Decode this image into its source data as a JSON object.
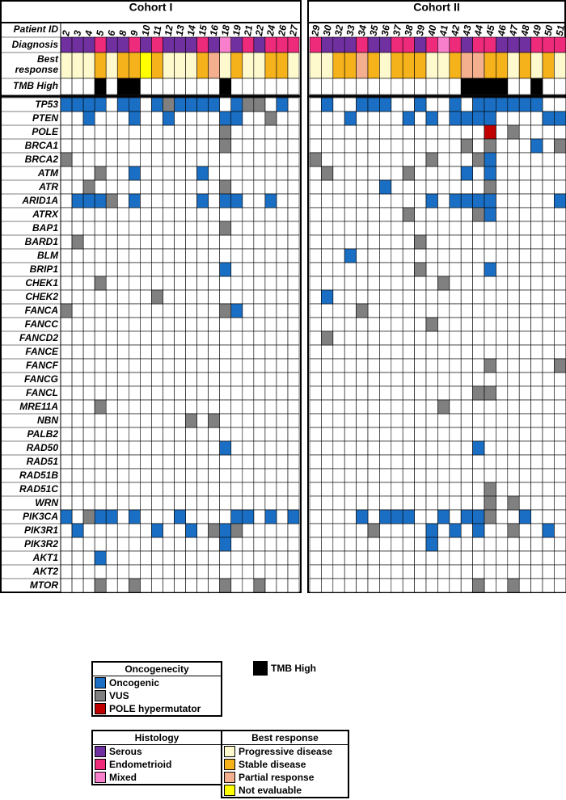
{
  "cohorts": [
    {
      "title": "Cohort I",
      "patients": [
        "2",
        "3",
        "4",
        "5",
        "6",
        "8",
        "9",
        "10",
        "11",
        "12",
        "13",
        "14",
        "15",
        "16",
        "18",
        "19",
        "21",
        "22",
        "24",
        "26",
        "27"
      ],
      "diagnosis": [
        "Serous",
        "Serous",
        "Serous",
        "Endometrioid",
        "Serous",
        "Serous",
        "Endometrioid",
        "Serous",
        "Endometrioid",
        "Serous",
        "Serous",
        "Serous",
        "Endometrioid",
        "Serous",
        "Mixed",
        "Serous",
        "Endometrioid",
        "Serous",
        "Endometrioid",
        "Endometrioid",
        "Endometrioid"
      ],
      "best_response": [
        "Progressive disease",
        "Progressive disease",
        "Progressive disease",
        "Stable disease",
        "Progressive disease",
        "Stable disease",
        "Stable disease",
        "Not evaluable",
        "Stable disease",
        "Progressive disease",
        "Progressive disease",
        "Progressive disease",
        "Stable disease",
        "Partial response",
        "Progressive disease",
        "Stable disease",
        "Progressive disease",
        "Progressive disease",
        "Stable disease",
        "Stable disease",
        "Progressive disease"
      ],
      "tmb_high": [
        "5",
        "8",
        "9",
        "18"
      ]
    },
    {
      "title": "Cohort II",
      "patients": [
        "29",
        "30",
        "32",
        "33",
        "34",
        "35",
        "36",
        "37",
        "38",
        "39",
        "40",
        "41",
        "42",
        "43",
        "44",
        "45",
        "46",
        "47",
        "48",
        "49",
        "50",
        "51"
      ],
      "diagnosis": [
        "Endometrioid",
        "Serous",
        "Serous",
        "Serous",
        "Endometrioid",
        "Serous",
        "Serous",
        "Endometrioid",
        "Endometrioid",
        "Serous",
        "Endometrioid",
        "Mixed",
        "Endometrioid",
        "Serous",
        "Endometrioid",
        "Endometrioid",
        "Serous",
        "Serous",
        "Serous",
        "Endometrioid",
        "Endometrioid",
        "Endometrioid"
      ],
      "best_response": [
        "Progressive disease",
        "Progressive disease",
        "Stable disease",
        "Stable disease",
        "Partial response",
        "Stable disease",
        "Progressive disease",
        "Stable disease",
        "Stable disease",
        "Stable disease",
        "Progressive disease",
        "Progressive disease",
        "Stable disease",
        "Partial response",
        "Partial response",
        "Stable disease",
        "Stable disease",
        "Progressive disease",
        "Stable disease",
        "Progressive disease",
        "Stable disease",
        "Progressive disease"
      ],
      "tmb_high": [
        "43",
        "44",
        "45",
        "46",
        "49"
      ]
    }
  ],
  "row_labels": {
    "patient_id": "Patient ID",
    "diagnosis": "Diagnosis",
    "best_response": "Best response",
    "tmb": "TMB High"
  },
  "genes": [
    {
      "gene": "TP53",
      "alterations": {
        "Oncogenic": [
          "2",
          "3",
          "4",
          "5",
          "8",
          "9",
          "11",
          "13",
          "14",
          "15",
          "16",
          "19",
          "26",
          "30",
          "34",
          "35",
          "36",
          "39",
          "42",
          "44",
          "45",
          "46",
          "47",
          "48",
          "49"
        ],
        "VUS": [
          "12",
          "21",
          "22"
        ]
      }
    },
    {
      "gene": "PTEN",
      "alterations": {
        "Oncogenic": [
          "4",
          "9",
          "12",
          "18",
          "19",
          "33",
          "38",
          "40",
          "42",
          "43",
          "44",
          "45",
          "50",
          "51"
        ],
        "VUS": [
          "24"
        ]
      }
    },
    {
      "gene": "POLE",
      "alterations": {
        "VUS": [
          "18",
          "47"
        ],
        "POLE hypermutator": [
          "45"
        ]
      }
    },
    {
      "gene": "BRCA1",
      "alterations": {
        "Oncogenic": [
          "49"
        ],
        "VUS": [
          "18",
          "43",
          "45",
          "51"
        ]
      }
    },
    {
      "gene": "BRCA2",
      "alterations": {
        "Oncogenic": [
          "45"
        ],
        "VUS": [
          "2",
          "29",
          "40",
          "44"
        ]
      }
    },
    {
      "gene": "ATM",
      "alterations": {
        "Oncogenic": [
          "9",
          "15",
          "43",
          "45"
        ],
        "VUS": [
          "5",
          "30",
          "38"
        ]
      }
    },
    {
      "gene": "ATR",
      "alterations": {
        "Oncogenic": [
          "36"
        ],
        "VUS": [
          "4",
          "18",
          "45"
        ]
      }
    },
    {
      "gene": "ARID1A",
      "alterations": {
        "Oncogenic": [
          "3",
          "4",
          "5",
          "9",
          "15",
          "18",
          "19",
          "24",
          "40",
          "42",
          "43",
          "44",
          "45",
          "51"
        ],
        "VUS": [
          "6"
        ]
      }
    },
    {
      "gene": "ATRX",
      "alterations": {
        "Oncogenic": [
          "45"
        ],
        "VUS": [
          "38",
          "44"
        ]
      }
    },
    {
      "gene": "BAP1",
      "alterations": {
        "VUS": [
          "18"
        ]
      }
    },
    {
      "gene": "BARD1",
      "alterations": {
        "VUS": [
          "3",
          "39"
        ]
      }
    },
    {
      "gene": "BLM",
      "alterations": {
        "Oncogenic": [
          "33"
        ]
      }
    },
    {
      "gene": "BRIP1",
      "alterations": {
        "Oncogenic": [
          "18",
          "45"
        ],
        "VUS": [
          "39"
        ]
      }
    },
    {
      "gene": "CHEK1",
      "alterations": {
        "VUS": [
          "5",
          "41"
        ]
      }
    },
    {
      "gene": "CHEK2",
      "alterations": {
        "Oncogenic": [
          "30"
        ],
        "VUS": [
          "11"
        ]
      }
    },
    {
      "gene": "FANCA",
      "alterations": {
        "Oncogenic": [
          "19"
        ],
        "VUS": [
          "2",
          "18",
          "34"
        ]
      }
    },
    {
      "gene": "FANCC",
      "alterations": {
        "VUS": [
          "40"
        ]
      }
    },
    {
      "gene": "FANCD2",
      "alterations": {
        "VUS": [
          "30"
        ]
      }
    },
    {
      "gene": "FANCE",
      "alterations": {}
    },
    {
      "gene": "FANCF",
      "alterations": {
        "VUS": [
          "45",
          "51"
        ]
      }
    },
    {
      "gene": "FANCG",
      "alterations": {}
    },
    {
      "gene": "FANCL",
      "alterations": {
        "VUS": [
          "44",
          "45"
        ]
      }
    },
    {
      "gene": "MRE11A",
      "alterations": {
        "VUS": [
          "5",
          "41"
        ]
      }
    },
    {
      "gene": "NBN",
      "alterations": {
        "VUS": [
          "14",
          "16"
        ]
      }
    },
    {
      "gene": "PALB2",
      "alterations": {}
    },
    {
      "gene": "RAD50",
      "alterations": {
        "Oncogenic": [
          "18",
          "44"
        ]
      }
    },
    {
      "gene": "RAD51",
      "alterations": {}
    },
    {
      "gene": "RAD51B",
      "alterations": {}
    },
    {
      "gene": "RAD51C",
      "alterations": {
        "VUS": [
          "45"
        ]
      }
    },
    {
      "gene": "WRN",
      "alterations": {
        "VUS": [
          "45",
          "47"
        ]
      }
    },
    {
      "gene": "PIK3CA",
      "alterations": {
        "Oncogenic": [
          "2",
          "5",
          "6",
          "9",
          "13",
          "19",
          "21",
          "24",
          "27",
          "34",
          "36",
          "37",
          "38",
          "41",
          "43",
          "44",
          "48"
        ],
        "VUS": [
          "4",
          "45"
        ]
      }
    },
    {
      "gene": "PIK3R1",
      "alterations": {
        "Oncogenic": [
          "3",
          "11",
          "14",
          "18",
          "40",
          "42",
          "44",
          "50"
        ],
        "VUS": [
          "16",
          "19",
          "35",
          "47"
        ]
      }
    },
    {
      "gene": "PIK3R2",
      "alterations": {
        "Oncogenic": [
          "18",
          "40"
        ]
      }
    },
    {
      "gene": "AKT1",
      "alterations": {
        "Oncogenic": [
          "5"
        ]
      }
    },
    {
      "gene": "AKT2",
      "alterations": {}
    },
    {
      "gene": "MTOR",
      "alterations": {
        "VUS": [
          "5",
          "9",
          "18",
          "22",
          "44",
          "47"
        ]
      }
    }
  ],
  "legends": {
    "oncogenecity": {
      "title": "Oncogenecity",
      "items": [
        {
          "label": "Oncogenic",
          "color": "#1a6fc4"
        },
        {
          "label": "VUS",
          "color": "#808080"
        },
        {
          "label": "POLE hypermutator",
          "color": "#c00000"
        }
      ]
    },
    "tmb": {
      "label": "TMB High",
      "color": "#000000"
    },
    "histology": {
      "title": "Histology",
      "items": [
        {
          "label": "Serous",
          "color": "#7030a0"
        },
        {
          "label": "Endometrioid",
          "color": "#ee2a7b"
        },
        {
          "label": "Mixed",
          "color": "#f77fcc"
        }
      ]
    },
    "best_response": {
      "title": "Best response",
      "items": [
        {
          "label": "Progressive disease",
          "color": "#fffacd"
        },
        {
          "label": "Stable disease",
          "color": "#f5b21a"
        },
        {
          "label": "Partial response",
          "color": "#f4b08e"
        },
        {
          "label": "Not evaluable",
          "color": "#ffff00"
        }
      ]
    }
  }
}
